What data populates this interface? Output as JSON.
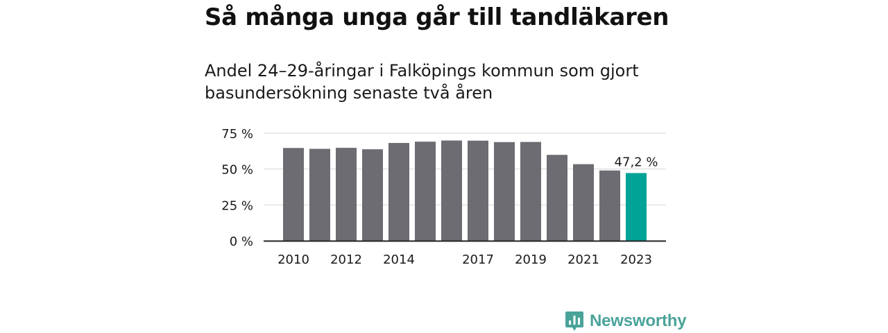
{
  "title": "Så många unga går till tandläkaren",
  "subtitle": "Andel 24–29-åringar i Falköpings kommun som gjort basundersökning senaste två åren",
  "brand": {
    "name": "Newsworthy",
    "color": "#4aa39a"
  },
  "chart_data": {
    "type": "bar",
    "title": "Så många unga går till tandläkaren",
    "subtitle": "Andel 24–29-åringar i Falköpings kommun som gjort basundersökning senaste två åren",
    "categories": [
      "2010",
      "2011",
      "2012",
      "2013",
      "2014",
      "2015",
      "2016",
      "2017",
      "2018",
      "2019",
      "2020",
      "2021",
      "2022",
      "2023"
    ],
    "values": [
      64.7,
      64.1,
      64.8,
      63.8,
      68.2,
      69.1,
      69.9,
      69.8,
      68.8,
      68.9,
      59.9,
      53.4,
      49.0,
      47.2
    ],
    "x_tick_labels": [
      "2010",
      "2012",
      "2014",
      "2017",
      "2019",
      "2021",
      "2023"
    ],
    "y_ticks": [
      0,
      25,
      50,
      75
    ],
    "y_tick_labels": [
      "0 %",
      "25 %",
      "50 %",
      "75 %"
    ],
    "ylim": [
      0,
      75
    ],
    "grid": true,
    "bar_color": "#6d6c72",
    "highlight_color": "#00a395",
    "highlight_index": 13,
    "annotation": "47,2 %",
    "xlabel": "",
    "ylabel": ""
  }
}
